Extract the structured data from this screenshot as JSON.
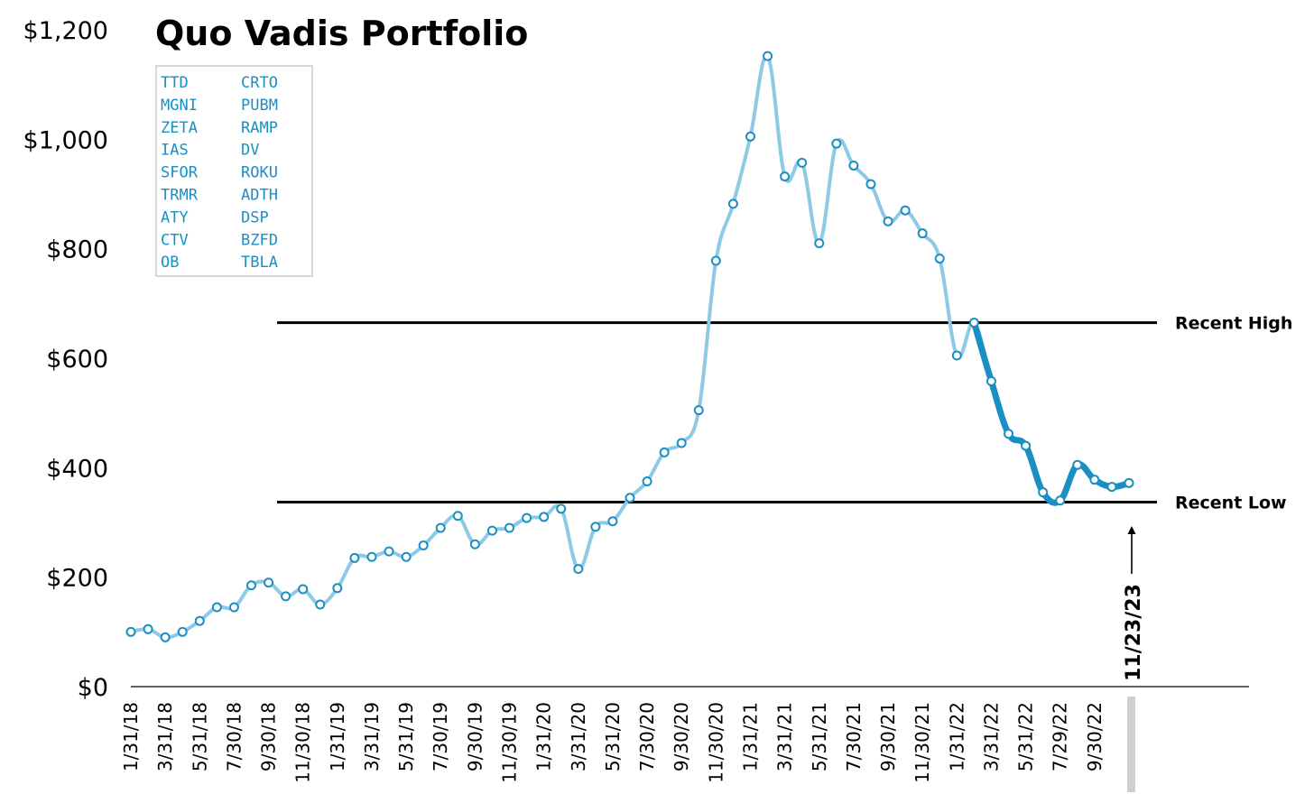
{
  "chart_data": {
    "type": "line",
    "title": "Quo Vadis Portfolio",
    "xlabel": "",
    "ylabel": "",
    "ylim": [
      0,
      1200
    ],
    "y_ticks": [
      "$0",
      "$200",
      "$400",
      "$600",
      "$800",
      "$1,000",
      "$1,200"
    ],
    "x_tick_labels": [
      "1/31/18",
      "3/31/18",
      "5/31/18",
      "7/30/18",
      "9/30/18",
      "11/30/18",
      "1/31/19",
      "3/31/19",
      "5/31/19",
      "7/30/19",
      "9/30/19",
      "11/30/19",
      "1/31/20",
      "3/31/20",
      "5/31/20",
      "7/30/20",
      "9/30/20",
      "11/30/20",
      "1/31/21",
      "3/31/21",
      "5/31/21",
      "7/30/21",
      "9/30/21",
      "11/30/21",
      "1/31/22",
      "3/31/22",
      "5/31/22",
      "7/29/22",
      "9/30/22"
    ],
    "series": [
      {
        "values": [
          100,
          105,
          90,
          100,
          120,
          145,
          145,
          185,
          190,
          165,
          178,
          150,
          180,
          235,
          237,
          247,
          237,
          258,
          290,
          312,
          260,
          285,
          290,
          308,
          310,
          325,
          215,
          292,
          302,
          345,
          375,
          428,
          445,
          505,
          778,
          882,
          1005,
          1152,
          932,
          957,
          810,
          992,
          952,
          918,
          850,
          870,
          828,
          782,
          605,
          665,
          558,
          462,
          440,
          355,
          340,
          405,
          378,
          365,
          372
        ]
      }
    ],
    "highlight_from_index": 49,
    "grid": false,
    "legend": "none",
    "reference_lines": [
      {
        "label": "Recent High",
        "value": 665
      },
      {
        "label": "Recent Low",
        "value": 337
      }
    ],
    "current_date_label": "11/23/23",
    "tickers_box": {
      "col1": [
        "TTD",
        "MGNI",
        "ZETA",
        "IAS",
        "SFOR",
        "TRMR",
        "ATY",
        "CTV",
        "OB"
      ],
      "col2": [
        "CRTO",
        "PUBM",
        "RAMP",
        "DV",
        "ROKU",
        "ADTH",
        "DSP",
        "BZFD",
        "TBLA"
      ]
    },
    "colors": {
      "line": "#8ec9e6",
      "line_highlight": "#1a8fc4",
      "marker_stroke": "#1a8fc4",
      "marker_fill": "#ffffff",
      "ticker_text": "#1a8fc4",
      "reference_line": "#000000",
      "date_bar": "#cfcfcf"
    }
  }
}
